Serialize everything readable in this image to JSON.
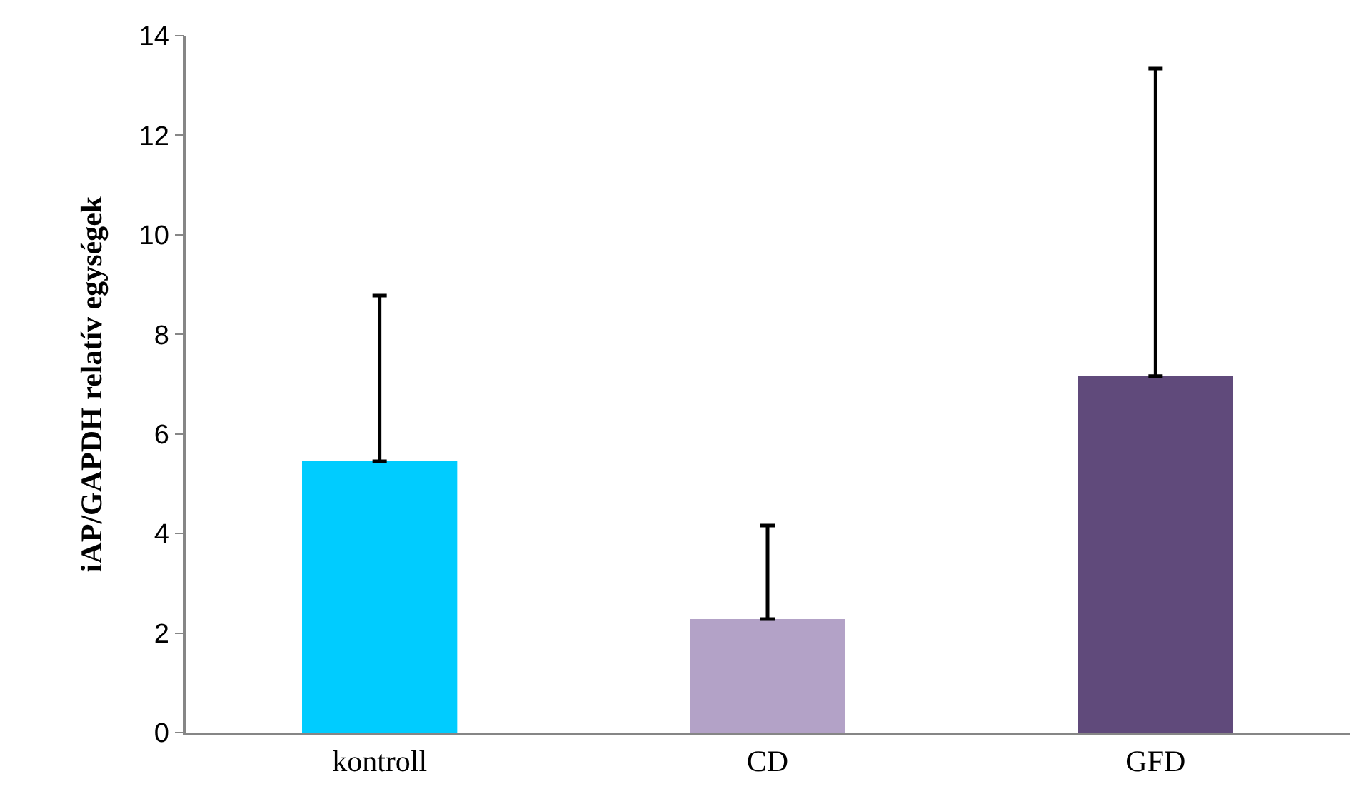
{
  "chart_data": {
    "type": "bar",
    "ylabel": "iAP/GAPDH relatív egységek",
    "categories": [
      "kontroll",
      "CD",
      "GFD"
    ],
    "values": [
      5.45,
      2.28,
      7.16
    ],
    "colors": [
      "#00ccff",
      "#b3a2c7",
      "#604a7b"
    ],
    "errors": [
      [
        5.45,
        8.78
      ],
      [
        2.28,
        4.16
      ],
      [
        7.16,
        13.34
      ]
    ],
    "ylim": [
      0,
      14
    ],
    "yticks": [
      0,
      2,
      4,
      6,
      8,
      10,
      12,
      14
    ],
    "grid": false
  }
}
